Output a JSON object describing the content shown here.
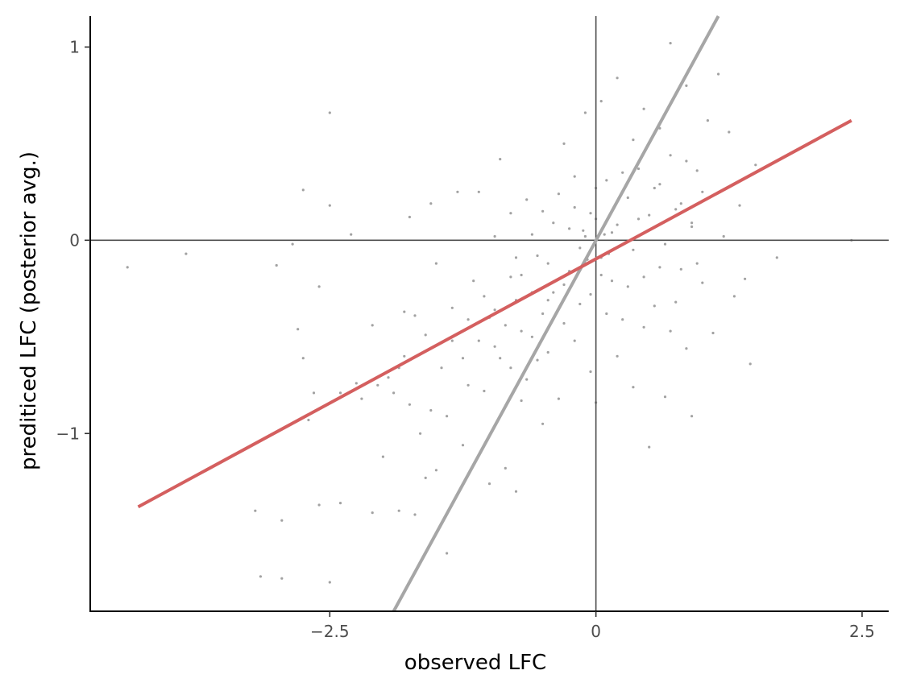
{
  "chart_data": {
    "type": "scatter",
    "title": "",
    "xlabel": "observed LFC",
    "ylabel": "prediticed LFC (posterior avg.)",
    "xlim": [
      -4.75,
      2.75
    ],
    "ylim": [
      -1.92,
      1.16
    ],
    "x_ticks": [
      {
        "value": -2.5,
        "label": "−2.5"
      },
      {
        "value": 0,
        "label": "0"
      },
      {
        "value": 2.5,
        "label": "2.5"
      }
    ],
    "y_ticks": [
      {
        "value": -1,
        "label": "−1"
      },
      {
        "value": 0,
        "label": "0"
      },
      {
        "value": 1,
        "label": "1"
      }
    ],
    "grid": false,
    "legend": "none",
    "reference_lines": {
      "x_zero": 0,
      "y_zero": 0,
      "color": "#4d4d4d"
    },
    "fit_lines": [
      {
        "kind": "identity-like",
        "x": [
          -1.9,
          1.15
        ],
        "y": [
          -1.92,
          1.16
        ],
        "color": "#a6a6a6"
      },
      {
        "kind": "regression",
        "x": [
          -4.3,
          2.4
        ],
        "y": [
          -1.38,
          0.62
        ],
        "color": "#d45f5f"
      }
    ],
    "point_color": "#555555",
    "points": [
      [
        -4.4,
        -0.14
      ],
      [
        -3.85,
        -0.07
      ],
      [
        -3.2,
        -1.4
      ],
      [
        -3.15,
        -1.74
      ],
      [
        -3.0,
        -0.13
      ],
      [
        -2.95,
        -1.45
      ],
      [
        -2.95,
        -1.75
      ],
      [
        -2.85,
        -0.02
      ],
      [
        -2.8,
        -0.46
      ],
      [
        -2.75,
        -0.61
      ],
      [
        -2.75,
        0.26
      ],
      [
        -2.7,
        -0.93
      ],
      [
        -2.65,
        -0.79
      ],
      [
        -2.6,
        -0.24
      ],
      [
        -2.6,
        -1.37
      ],
      [
        -2.5,
        0.66
      ],
      [
        -2.5,
        0.18
      ],
      [
        -2.5,
        -1.77
      ],
      [
        -2.4,
        -0.79
      ],
      [
        -2.4,
        -1.36
      ],
      [
        -2.3,
        0.03
      ],
      [
        -2.25,
        -0.74
      ],
      [
        -2.2,
        -0.82
      ],
      [
        -2.1,
        -0.44
      ],
      [
        -2.1,
        -1.41
      ],
      [
        -2.05,
        -0.75
      ],
      [
        -2.0,
        -1.12
      ],
      [
        -1.95,
        -0.71
      ],
      [
        -1.9,
        -0.79
      ],
      [
        -1.85,
        -1.4
      ],
      [
        -1.85,
        -0.66
      ],
      [
        -1.8,
        -0.37
      ],
      [
        -1.8,
        -0.6
      ],
      [
        -1.75,
        -0.85
      ],
      [
        -1.75,
        0.12
      ],
      [
        -1.7,
        -0.39
      ],
      [
        -1.7,
        -1.42
      ],
      [
        -1.65,
        -1.0
      ],
      [
        -1.6,
        -0.49
      ],
      [
        -1.6,
        -1.23
      ],
      [
        -1.55,
        -0.88
      ],
      [
        -1.55,
        0.19
      ],
      [
        -1.5,
        -0.12
      ],
      [
        -1.5,
        -1.19
      ],
      [
        -1.45,
        -0.66
      ],
      [
        -1.4,
        -0.91
      ],
      [
        -1.4,
        -1.62
      ],
      [
        -1.35,
        -0.52
      ],
      [
        -1.3,
        0.25
      ],
      [
        -1.25,
        -0.61
      ],
      [
        -1.25,
        -1.06
      ],
      [
        -1.2,
        -0.75
      ],
      [
        -1.15,
        -0.21
      ],
      [
        -1.1,
        -0.52
      ],
      [
        -1.1,
        0.25
      ],
      [
        -1.05,
        -0.78
      ],
      [
        -1.0,
        -0.4
      ],
      [
        -1.0,
        -1.26
      ],
      [
        -0.95,
        0.02
      ],
      [
        -0.95,
        -0.36
      ],
      [
        -0.9,
        0.42
      ],
      [
        -0.9,
        -0.61
      ],
      [
        -0.85,
        -1.18
      ],
      [
        -0.8,
        -0.19
      ],
      [
        -0.8,
        0.14
      ],
      [
        -0.75,
        -0.09
      ],
      [
        -0.75,
        -1.3
      ],
      [
        -0.7,
        -0.47
      ],
      [
        -0.7,
        -0.83
      ],
      [
        -0.65,
        0.21
      ],
      [
        -0.6,
        -0.27
      ],
      [
        -0.6,
        0.03
      ],
      [
        -0.55,
        -0.62
      ],
      [
        -0.5,
        -0.95
      ],
      [
        -0.5,
        0.15
      ],
      [
        -0.45,
        -0.12
      ],
      [
        -0.45,
        -0.31
      ],
      [
        -0.4,
        0.09
      ],
      [
        -0.35,
        -0.82
      ],
      [
        -0.3,
        0.5
      ],
      [
        -0.3,
        -0.23
      ],
      [
        -0.25,
        0.06
      ],
      [
        -0.2,
        -0.52
      ],
      [
        -0.2,
        0.33
      ],
      [
        -0.15,
        -0.04
      ],
      [
        -0.1,
        0.66
      ],
      [
        -0.05,
        -0.68
      ],
      [
        -0.05,
        0.14
      ],
      [
        0.0,
        -0.84
      ],
      [
        0.0,
        0.27
      ],
      [
        0.05,
        -0.18
      ],
      [
        0.05,
        0.72
      ],
      [
        0.1,
        -0.38
      ],
      [
        0.15,
        0.04
      ],
      [
        0.2,
        0.84
      ],
      [
        0.2,
        -0.6
      ],
      [
        0.25,
        0.35
      ],
      [
        0.3,
        -0.24
      ],
      [
        0.35,
        0.52
      ],
      [
        0.35,
        -0.76
      ],
      [
        0.4,
        0.11
      ],
      [
        0.45,
        -0.45
      ],
      [
        0.45,
        0.68
      ],
      [
        0.5,
        -1.07
      ],
      [
        0.55,
        0.27
      ],
      [
        0.6,
        -0.14
      ],
      [
        0.6,
        0.58
      ],
      [
        0.65,
        -0.81
      ],
      [
        0.7,
        0.44
      ],
      [
        0.7,
        1.02
      ],
      [
        0.75,
        -0.32
      ],
      [
        0.8,
        0.19
      ],
      [
        0.85,
        0.8
      ],
      [
        0.85,
        -0.56
      ],
      [
        0.9,
        0.07
      ],
      [
        0.9,
        -0.91
      ],
      [
        0.95,
        0.36
      ],
      [
        1.0,
        -0.22
      ],
      [
        1.05,
        0.62
      ],
      [
        1.1,
        -0.48
      ],
      [
        1.15,
        0.86
      ],
      [
        1.2,
        0.02
      ],
      [
        1.25,
        0.56
      ],
      [
        1.3,
        -0.29
      ],
      [
        1.35,
        0.18
      ],
      [
        1.4,
        -0.2
      ],
      [
        1.45,
        -0.64
      ],
      [
        1.5,
        0.39
      ],
      [
        1.7,
        -0.09
      ],
      [
        2.4,
        0.0
      ],
      [
        -1.35,
        -0.35
      ],
      [
        -1.2,
        -0.41
      ],
      [
        -1.05,
        -0.29
      ],
      [
        -0.95,
        -0.55
      ],
      [
        -0.85,
        -0.44
      ],
      [
        -0.8,
        -0.66
      ],
      [
        -0.75,
        -0.31
      ],
      [
        -0.7,
        -0.18
      ],
      [
        -0.65,
        -0.72
      ],
      [
        -0.6,
        -0.5
      ],
      [
        -0.55,
        -0.08
      ],
      [
        -0.5,
        -0.38
      ],
      [
        -0.45,
        -0.58
      ],
      [
        -0.4,
        -0.27
      ],
      [
        -0.35,
        0.24
      ],
      [
        -0.3,
        -0.43
      ],
      [
        -0.25,
        -0.16
      ],
      [
        -0.2,
        0.17
      ],
      [
        -0.15,
        -0.33
      ],
      [
        -0.1,
        0.02
      ],
      [
        -0.05,
        -0.28
      ],
      [
        0.0,
        0.11
      ],
      [
        0.05,
        -0.09
      ],
      [
        0.1,
        0.31
      ],
      [
        0.15,
        -0.21
      ],
      [
        0.2,
        0.08
      ],
      [
        0.25,
        -0.41
      ],
      [
        0.3,
        0.22
      ],
      [
        0.35,
        -0.05
      ],
      [
        0.4,
        0.37
      ],
      [
        0.45,
        -0.19
      ],
      [
        0.5,
        0.13
      ],
      [
        0.55,
        -0.34
      ],
      [
        0.6,
        0.29
      ],
      [
        0.65,
        -0.02
      ],
      [
        0.7,
        -0.47
      ],
      [
        0.75,
        0.16
      ],
      [
        0.8,
        -0.15
      ],
      [
        0.85,
        0.41
      ],
      [
        0.9,
        0.09
      ],
      [
        0.95,
        -0.12
      ],
      [
        1.0,
        0.25
      ],
      [
        -0.12,
        0.05
      ],
      [
        0.08,
        0.03
      ],
      [
        0.12,
        -0.07
      ],
      [
        -0.08,
        -0.1
      ]
    ]
  }
}
